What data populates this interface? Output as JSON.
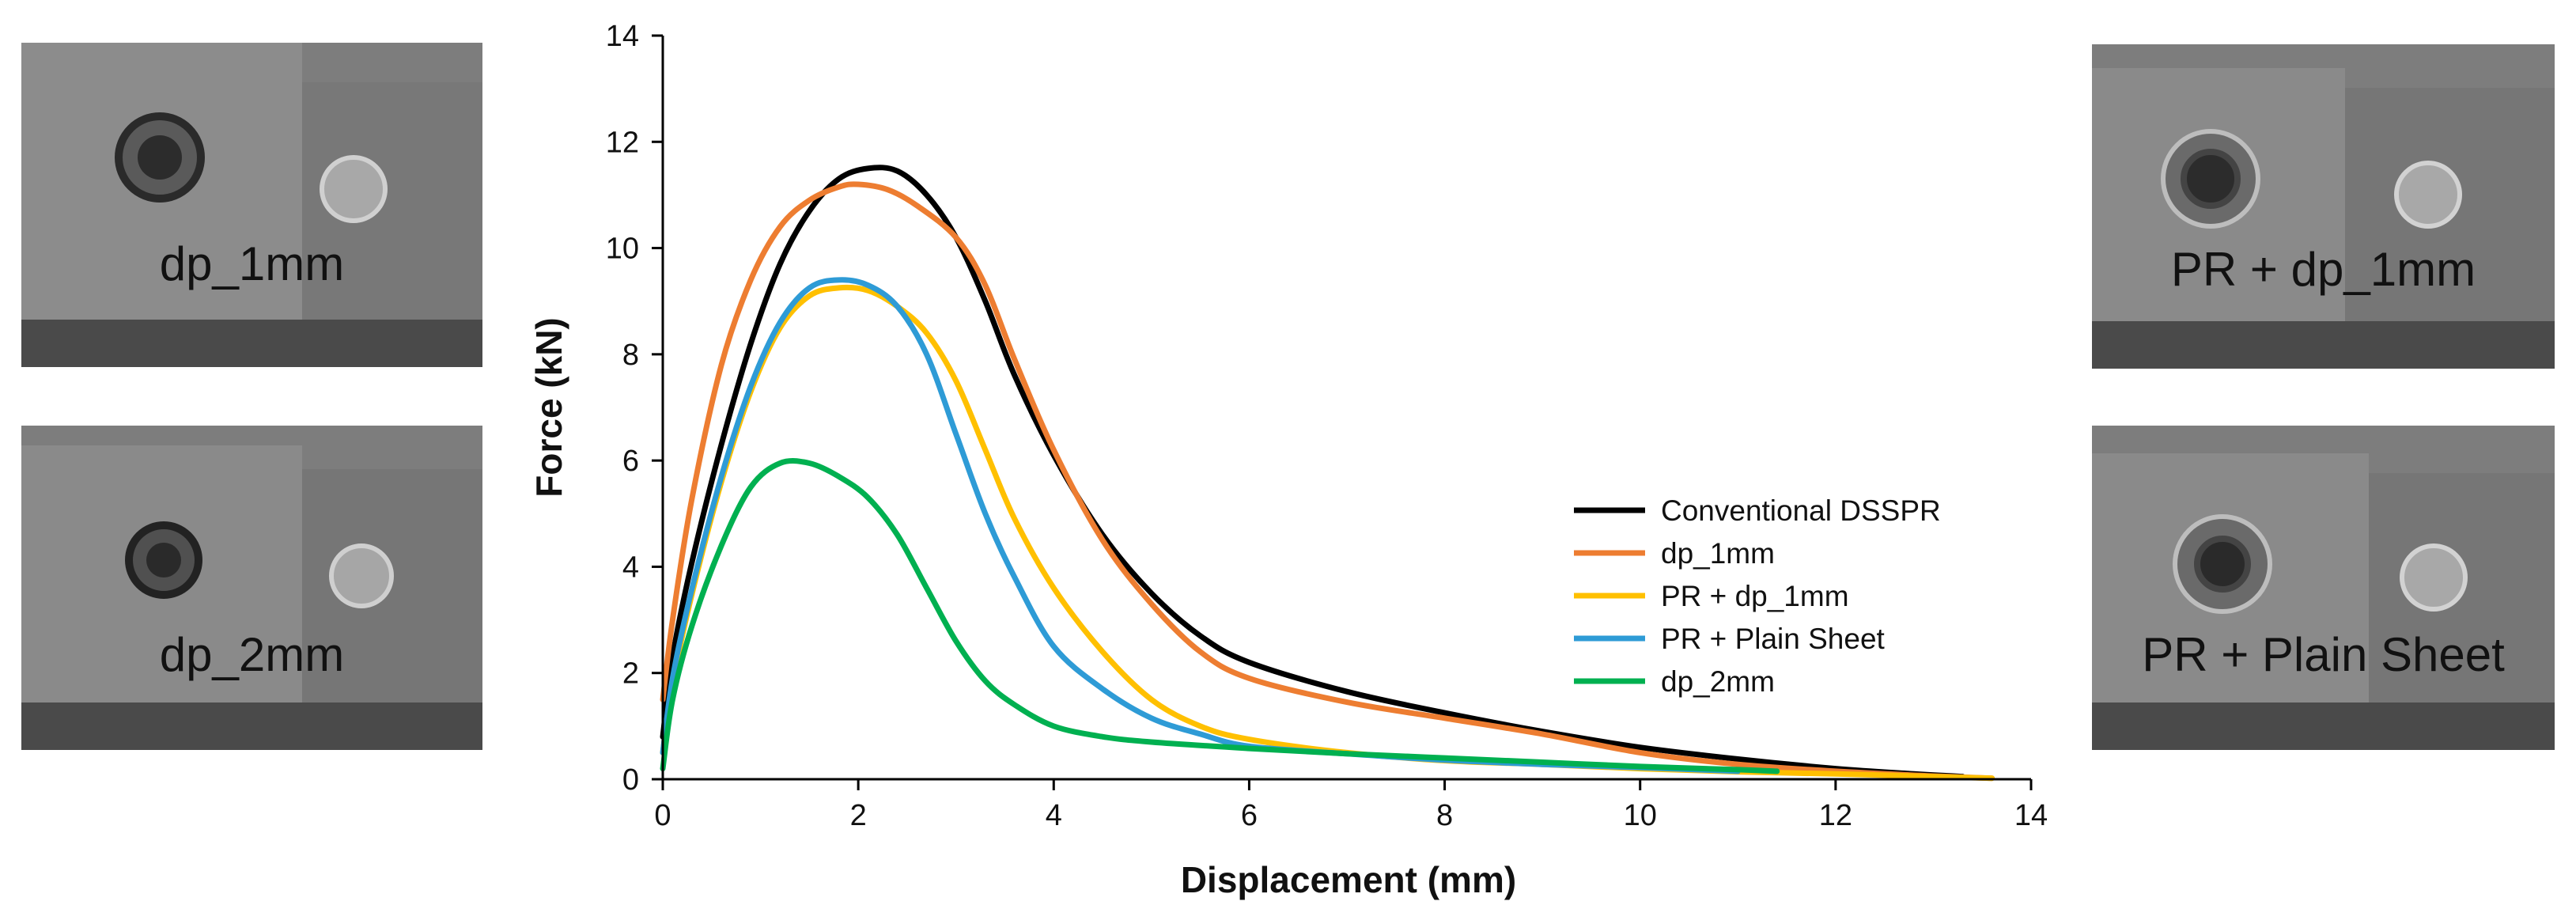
{
  "photos": [
    {
      "label": "dp_1mm"
    },
    {
      "label": "dp_2mm"
    },
    {
      "label": "PR + dp_1mm"
    },
    {
      "label": "PR + Plain Sheet"
    }
  ],
  "chart_data": {
    "type": "line",
    "title": "",
    "xlabel": "Displacement (mm)",
    "ylabel": "Force (kN)",
    "xlim": [
      0,
      14
    ],
    "ylim": [
      0,
      14
    ],
    "xticks": [
      0,
      2,
      4,
      6,
      8,
      10,
      12,
      14
    ],
    "yticks": [
      0,
      2,
      4,
      6,
      8,
      10,
      12,
      14
    ],
    "grid": false,
    "legend_position": "center-right",
    "series": [
      {
        "name": "Conventional DSSPR",
        "color": "#000000",
        "points": [
          [
            0,
            0.8
          ],
          [
            0.1,
            2.3
          ],
          [
            0.3,
            4.1
          ],
          [
            0.6,
            6.3
          ],
          [
            0.9,
            8.2
          ],
          [
            1.2,
            9.7
          ],
          [
            1.5,
            10.7
          ],
          [
            1.8,
            11.3
          ],
          [
            2.1,
            11.5
          ],
          [
            2.4,
            11.45
          ],
          [
            2.7,
            11.0
          ],
          [
            3.0,
            10.2
          ],
          [
            3.3,
            9.0
          ],
          [
            3.6,
            7.6
          ],
          [
            4.0,
            6.1
          ],
          [
            4.5,
            4.6
          ],
          [
            5.0,
            3.5
          ],
          [
            5.5,
            2.7
          ],
          [
            6.0,
            2.2
          ],
          [
            7.0,
            1.65
          ],
          [
            8.0,
            1.25
          ],
          [
            9.0,
            0.9
          ],
          [
            10.0,
            0.6
          ],
          [
            11.0,
            0.38
          ],
          [
            12.0,
            0.2
          ],
          [
            12.8,
            0.1
          ],
          [
            13.3,
            0.05
          ]
        ]
      },
      {
        "name": "dp_1mm",
        "color": "#ed7d31",
        "points": [
          [
            0,
            1.5
          ],
          [
            0.1,
            3.0
          ],
          [
            0.3,
            5.3
          ],
          [
            0.6,
            7.8
          ],
          [
            0.9,
            9.4
          ],
          [
            1.2,
            10.4
          ],
          [
            1.5,
            10.9
          ],
          [
            1.8,
            11.15
          ],
          [
            2.0,
            11.2
          ],
          [
            2.3,
            11.1
          ],
          [
            2.6,
            10.8
          ],
          [
            3.0,
            10.2
          ],
          [
            3.3,
            9.3
          ],
          [
            3.6,
            7.9
          ],
          [
            4.0,
            6.2
          ],
          [
            4.5,
            4.5
          ],
          [
            5.0,
            3.3
          ],
          [
            5.5,
            2.4
          ],
          [
            6.0,
            1.9
          ],
          [
            7.0,
            1.45
          ],
          [
            8.0,
            1.15
          ],
          [
            9.0,
            0.85
          ],
          [
            10.0,
            0.5
          ],
          [
            11.0,
            0.28
          ],
          [
            12.0,
            0.15
          ],
          [
            13.0,
            0.06
          ],
          [
            13.6,
            0.02
          ]
        ]
      },
      {
        "name": "PR + dp_1mm",
        "color": "#ffc000",
        "points": [
          [
            0,
            0.5
          ],
          [
            0.1,
            1.8
          ],
          [
            0.3,
            3.5
          ],
          [
            0.6,
            5.6
          ],
          [
            0.9,
            7.3
          ],
          [
            1.2,
            8.5
          ],
          [
            1.5,
            9.1
          ],
          [
            1.8,
            9.25
          ],
          [
            2.1,
            9.2
          ],
          [
            2.4,
            8.9
          ],
          [
            2.7,
            8.4
          ],
          [
            3.0,
            7.5
          ],
          [
            3.3,
            6.2
          ],
          [
            3.6,
            4.9
          ],
          [
            4.0,
            3.6
          ],
          [
            4.5,
            2.4
          ],
          [
            5.0,
            1.5
          ],
          [
            5.5,
            1.0
          ],
          [
            6.0,
            0.75
          ],
          [
            7.0,
            0.5
          ],
          [
            8.0,
            0.35
          ],
          [
            9.0,
            0.28
          ],
          [
            10.0,
            0.2
          ],
          [
            11.0,
            0.14
          ],
          [
            12.0,
            0.1
          ],
          [
            13.0,
            0.05
          ],
          [
            13.6,
            0.02
          ]
        ]
      },
      {
        "name": "PR + Plain Sheet",
        "color": "#2e9bd6",
        "points": [
          [
            0,
            0.5
          ],
          [
            0.1,
            1.9
          ],
          [
            0.3,
            3.6
          ],
          [
            0.6,
            5.7
          ],
          [
            0.9,
            7.4
          ],
          [
            1.2,
            8.6
          ],
          [
            1.5,
            9.25
          ],
          [
            1.8,
            9.4
          ],
          [
            2.1,
            9.3
          ],
          [
            2.4,
            8.9
          ],
          [
            2.7,
            8.0
          ],
          [
            3.0,
            6.5
          ],
          [
            3.3,
            5.0
          ],
          [
            3.6,
            3.8
          ],
          [
            4.0,
            2.5
          ],
          [
            4.5,
            1.7
          ],
          [
            5.0,
            1.15
          ],
          [
            5.5,
            0.85
          ],
          [
            6.0,
            0.62
          ],
          [
            7.0,
            0.48
          ],
          [
            8.0,
            0.36
          ],
          [
            9.0,
            0.28
          ],
          [
            10.0,
            0.22
          ],
          [
            11.0,
            0.15
          ]
        ]
      },
      {
        "name": "dp_2mm",
        "color": "#00b050",
        "points": [
          [
            0,
            0.2
          ],
          [
            0.1,
            1.5
          ],
          [
            0.3,
            2.9
          ],
          [
            0.6,
            4.4
          ],
          [
            0.9,
            5.5
          ],
          [
            1.2,
            5.95
          ],
          [
            1.5,
            5.95
          ],
          [
            1.8,
            5.7
          ],
          [
            2.1,
            5.3
          ],
          [
            2.4,
            4.6
          ],
          [
            2.7,
            3.6
          ],
          [
            3.0,
            2.6
          ],
          [
            3.3,
            1.85
          ],
          [
            3.6,
            1.4
          ],
          [
            4.0,
            1.0
          ],
          [
            4.5,
            0.8
          ],
          [
            5.0,
            0.7
          ],
          [
            6.0,
            0.58
          ],
          [
            7.0,
            0.48
          ],
          [
            8.0,
            0.4
          ],
          [
            9.0,
            0.32
          ],
          [
            10.0,
            0.24
          ],
          [
            11.0,
            0.18
          ],
          [
            11.4,
            0.15
          ]
        ]
      }
    ]
  }
}
